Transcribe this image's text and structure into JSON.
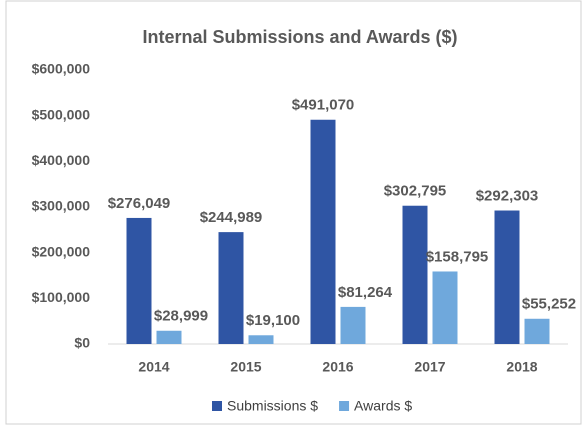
{
  "chart_data": {
    "type": "bar",
    "title": "Internal Submissions and Awards ($)",
    "categories": [
      "2014",
      "2015",
      "2016",
      "2017",
      "2018"
    ],
    "series": [
      {
        "name": "Submissions $",
        "color": "#2f55a4",
        "values": [
          276049,
          244989,
          491070,
          302795,
          292303
        ],
        "value_labels": [
          "$276,049",
          "$244,989",
          "$491,070",
          "$302,795",
          "$292,303"
        ]
      },
      {
        "name": "Awards $",
        "color": "#6fa8dc",
        "values": [
          28999,
          19100,
          81264,
          158795,
          55252
        ],
        "value_labels": [
          "$28,999",
          "$19,100",
          "$81,264",
          "$158,795",
          "$55,252"
        ]
      }
    ],
    "ylim": [
      0,
      600000
    ],
    "yticks": [
      {
        "value": 0,
        "label": "$0"
      },
      {
        "value": 100000,
        "label": "$100,000"
      },
      {
        "value": 200000,
        "label": "$200,000"
      },
      {
        "value": 300000,
        "label": "$300,000"
      },
      {
        "value": 400000,
        "label": "$400,000"
      },
      {
        "value": 500000,
        "label": "$500,000"
      },
      {
        "value": 600000,
        "label": "$600,000"
      }
    ],
    "grid": false,
    "legend": "bottom"
  }
}
